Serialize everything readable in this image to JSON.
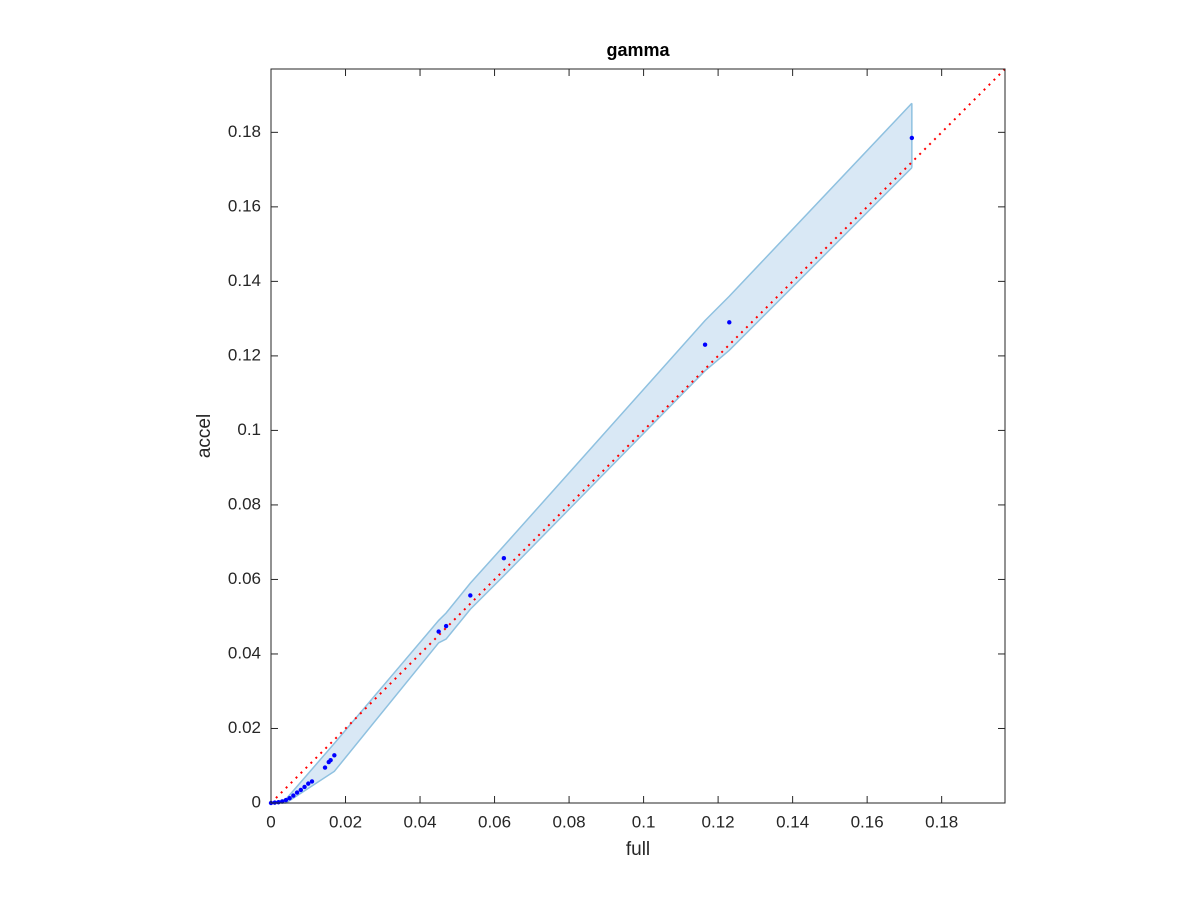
{
  "chart_data": {
    "type": "scatter",
    "title": "gamma",
    "x_label": "full",
    "y_label": "accel",
    "x": [
      0,
      0.001,
      0.002,
      0.003,
      0.004,
      0.005,
      0.006,
      0.007,
      0.008,
      0.009,
      0.01,
      0.011,
      0.0145,
      0.0155,
      0.016,
      0.017,
      0.045,
      0.047,
      0.0535,
      0.0625,
      0.1165,
      0.123,
      0.172
    ],
    "values": [
      0,
      0.0001,
      0.0002,
      0.0004,
      0.0008,
      0.0013,
      0.002,
      0.0028,
      0.0035,
      0.0043,
      0.0052,
      0.0058,
      0.0095,
      0.011,
      0.0115,
      0.0128,
      0.046,
      0.0475,
      0.0557,
      0.0657,
      0.123,
      0.129,
      0.1785
    ],
    "color": "#0000ff",
    "band": {
      "x": [
        0,
        0.004,
        0.017,
        0.045,
        0.047,
        0.0535,
        0.0625,
        0.1165,
        0.123,
        0.172
      ],
      "upper": [
        0,
        0.001,
        0.016,
        0.049,
        0.051,
        0.059,
        0.069,
        0.1295,
        0.136,
        0.1878
      ],
      "lower": [
        0,
        0,
        0.0085,
        0.043,
        0.044,
        0.052,
        0.061,
        0.116,
        0.1215,
        0.1705
      ],
      "color": "#8fc1e0",
      "fill": "#d9e8f5"
    },
    "identity_line": {
      "color": "#ff0000",
      "style": "dotted"
    },
    "xlim": [
      0,
      0.197
    ],
    "ylim": [
      0,
      0.197
    ],
    "xticks": [
      0,
      0.02,
      0.04,
      0.06,
      0.08,
      0.1,
      0.12,
      0.14,
      0.16,
      0.18
    ],
    "yticks": [
      0,
      0.02,
      0.04,
      0.06,
      0.08,
      0.1,
      0.12,
      0.14,
      0.16,
      0.18
    ],
    "grid": false
  }
}
